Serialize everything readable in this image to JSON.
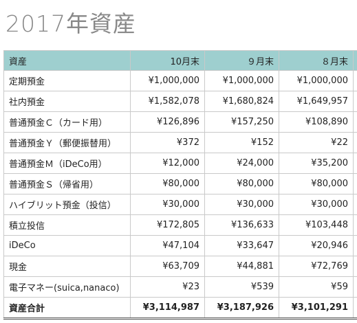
{
  "title": "2017年資産",
  "table": {
    "headers": [
      "資産",
      "10月末",
      "９月末",
      "８月末"
    ],
    "rows": [
      {
        "label": "定期預金",
        "values": [
          "¥1,000,000",
          "¥1,000,000",
          "¥1,000,000"
        ]
      },
      {
        "label": "社内預金",
        "values": [
          "¥1,582,078",
          "¥1,680,824",
          "¥1,649,957"
        ]
      },
      {
        "label": "普通預金Ｃ（カード用）",
        "values": [
          "¥126,896",
          "¥157,250",
          "¥108,890"
        ]
      },
      {
        "label": "普通預金Ｙ（郵便振替用）",
        "values": [
          "¥372",
          "¥152",
          "¥22"
        ]
      },
      {
        "label": "普通預金Ｍ（iDeCo用）",
        "values": [
          "¥12,000",
          "¥24,000",
          "¥35,200"
        ]
      },
      {
        "label": "普通預金Ｓ（帰省用）",
        "values": [
          "¥80,000",
          "¥80,000",
          "¥80,000"
        ]
      },
      {
        "label": "ハイブリット預金（投信）",
        "values": [
          "¥30,000",
          "¥30,000",
          "¥30,000"
        ]
      },
      {
        "label": "積立投信",
        "values": [
          "¥172,805",
          "¥136,633",
          "¥103,448"
        ]
      },
      {
        "label": "iDeCo",
        "values": [
          "¥47,104",
          "¥33,647",
          "¥20,946"
        ]
      },
      {
        "label": "現金",
        "values": [
          "¥63,709",
          "¥44,881",
          "¥72,769"
        ]
      },
      {
        "label": "電子マネー(suica,nanaco)",
        "values": [
          "¥23",
          "¥539",
          "¥59"
        ]
      }
    ],
    "total": {
      "label": "資産合計",
      "values": [
        "¥3,114,987",
        "¥3,187,926",
        "¥3,101,291"
      ]
    }
  },
  "colors": {
    "header_bg": "#9ecfcf",
    "title_text": "#888888",
    "border": "#c9c9c9"
  }
}
